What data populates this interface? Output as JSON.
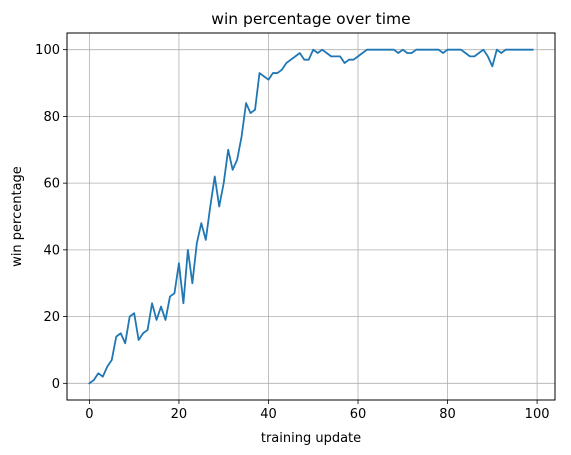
{
  "chart_data": {
    "type": "line",
    "title": "win percentage over time",
    "xlabel": "training update",
    "ylabel": "win percentage",
    "xlim": [
      -5,
      104
    ],
    "ylim": [
      -5,
      105
    ],
    "xticks": [
      0,
      20,
      40,
      60,
      80,
      100
    ],
    "yticks": [
      0,
      20,
      40,
      60,
      80,
      100
    ],
    "grid": true,
    "color": "#1f77b4",
    "series": [
      {
        "x": [
          0,
          1,
          2,
          3,
          4,
          5,
          6,
          7,
          8,
          9,
          10,
          11,
          12,
          13,
          14,
          15,
          16,
          17,
          18,
          19,
          20,
          21,
          22,
          23,
          24,
          25,
          26,
          27,
          28,
          29,
          30,
          31,
          32,
          33,
          34,
          35,
          36,
          37,
          38,
          39,
          40,
          41,
          42,
          43,
          44,
          45,
          46,
          47,
          48,
          49,
          50,
          51,
          52,
          53,
          54,
          55,
          56,
          57,
          58,
          59,
          60,
          61,
          62,
          63,
          64,
          65,
          66,
          67,
          68,
          69,
          70,
          71,
          72,
          73,
          74,
          75,
          76,
          77,
          78,
          79,
          80,
          81,
          82,
          83,
          84,
          85,
          86,
          87,
          88,
          89,
          90,
          91,
          92,
          93,
          94,
          95,
          96,
          97,
          98,
          99
        ],
        "values": [
          0,
          1,
          3,
          2,
          5,
          7,
          14,
          15,
          12,
          20,
          21,
          13,
          15,
          16,
          24,
          19,
          23,
          19,
          26,
          27,
          36,
          24,
          40,
          30,
          42,
          48,
          43,
          53,
          62,
          53,
          60,
          70,
          64,
          67,
          74,
          84,
          81,
          82,
          93,
          92,
          91,
          93,
          93,
          94,
          96,
          97,
          98,
          99,
          97,
          97,
          100,
          99,
          100,
          99,
          98,
          98,
          98,
          96,
          97,
          97,
          98,
          99,
          100,
          100,
          100,
          100,
          100,
          100,
          100,
          99,
          100,
          99,
          99,
          100,
          100,
          100,
          100,
          100,
          100,
          99,
          100,
          100,
          100,
          100,
          99,
          98,
          98,
          99,
          100,
          98,
          95,
          100,
          99,
          100,
          100,
          100,
          100,
          100,
          100,
          100
        ]
      }
    ]
  }
}
